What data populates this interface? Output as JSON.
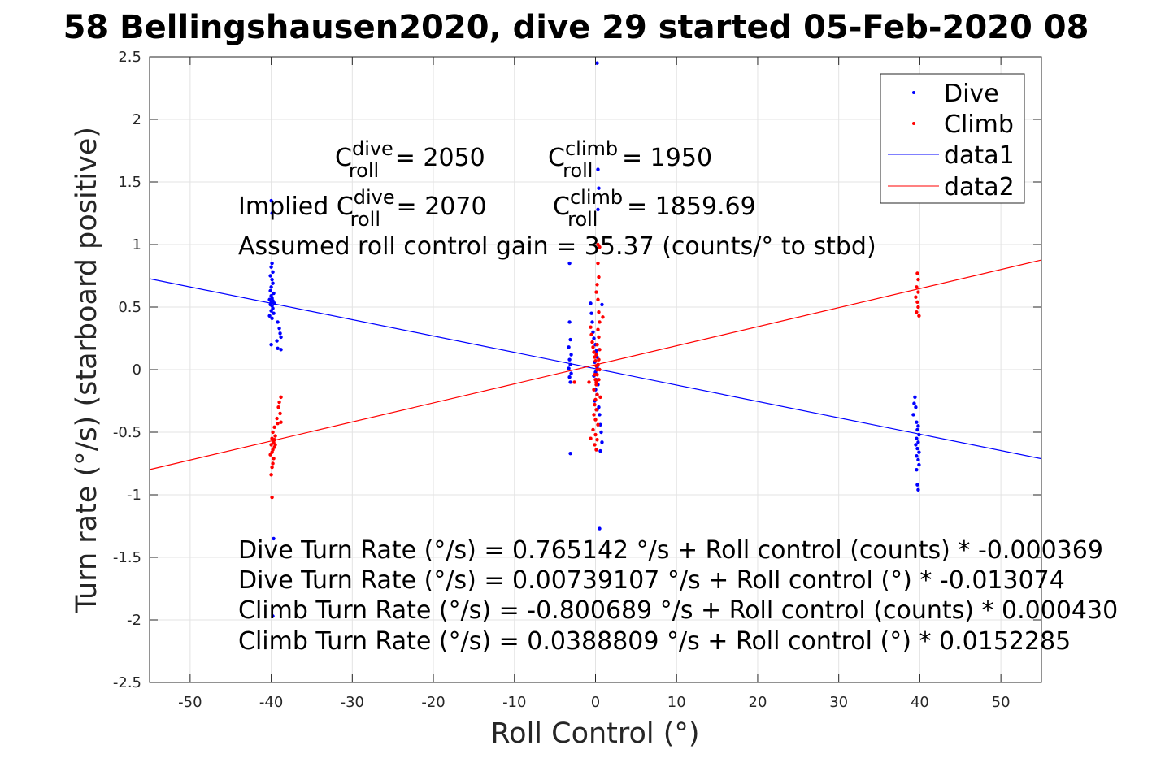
{
  "chart_data": {
    "type": "scatter",
    "title": "58 Bellingshausen2020, dive 29 started 05-Feb-2020 08",
    "xlabel": "Roll Control (°)",
    "ylabel": "Turn rate (°/s) (starboard positive)",
    "xlim": [
      -55,
      55
    ],
    "ylim": [
      -2.5,
      2.5
    ],
    "xticks": [
      -50,
      -40,
      -30,
      -20,
      -10,
      0,
      10,
      20,
      30,
      40,
      50
    ],
    "yticks": [
      -2.5,
      -2,
      -1.5,
      -1,
      -0.5,
      0,
      0.5,
      1,
      1.5,
      2,
      2.5
    ],
    "grid": true,
    "legend_position": "top-right",
    "colors": {
      "dive": "#0000ff",
      "climb": "#ff0000"
    },
    "series": [
      {
        "name": "Dive",
        "kind": "points",
        "color": "#0000ff",
        "points": [
          [
            -39.9,
            0.85
          ],
          [
            -40.0,
            0.82
          ],
          [
            -39.8,
            0.78
          ],
          [
            -40.1,
            0.75
          ],
          [
            -39.9,
            0.72
          ],
          [
            -39.8,
            0.69
          ],
          [
            -40.0,
            0.66
          ],
          [
            -40.1,
            0.63
          ],
          [
            -39.7,
            0.61
          ],
          [
            -40.0,
            0.59
          ],
          [
            -39.9,
            0.57
          ],
          [
            -40.2,
            0.56
          ],
          [
            -39.8,
            0.55
          ],
          [
            -40.0,
            0.54
          ],
          [
            -39.6,
            0.53
          ],
          [
            -40.1,
            0.52
          ],
          [
            -39.9,
            0.51
          ],
          [
            -39.8,
            0.49
          ],
          [
            -40.0,
            0.47
          ],
          [
            -39.7,
            0.45
          ],
          [
            -40.2,
            0.43
          ],
          [
            -39.9,
            0.41
          ],
          [
            -39.2,
            0.38
          ],
          [
            -39.0,
            0.33
          ],
          [
            -38.9,
            0.29
          ],
          [
            -38.8,
            0.26
          ],
          [
            -39.3,
            0.23
          ],
          [
            -40.0,
            0.2
          ],
          [
            -39.2,
            0.17
          ],
          [
            -38.8,
            0.16
          ],
          [
            -40.0,
            1.35
          ],
          [
            -39.9,
            1.25
          ],
          [
            -39.7,
            -1.35
          ],
          [
            -39.8,
            -1.97
          ],
          [
            -3.2,
            0.38
          ],
          [
            -3.1,
            0.24
          ],
          [
            -3.3,
            0.18
          ],
          [
            -3.0,
            0.12
          ],
          [
            -3.2,
            0.08
          ],
          [
            -3.1,
            0.04
          ],
          [
            -3.3,
            0.01
          ],
          [
            -3.0,
            -0.03
          ],
          [
            -3.2,
            -0.06
          ],
          [
            -3.1,
            -0.1
          ],
          [
            -3.2,
            0.85
          ],
          [
            -3.1,
            -0.67
          ],
          [
            -0.6,
            0.53
          ],
          [
            -0.5,
            0.45
          ],
          [
            -0.4,
            0.38
          ],
          [
            -0.3,
            0.3
          ],
          [
            -0.2,
            0.25
          ],
          [
            0.0,
            0.2
          ],
          [
            0.1,
            0.15
          ],
          [
            0.2,
            0.1
          ],
          [
            -0.1,
            0.06
          ],
          [
            0.2,
            0.02
          ],
          [
            0.0,
            -0.02
          ],
          [
            -0.2,
            -0.05
          ],
          [
            0.1,
            -0.08
          ],
          [
            0.3,
            -0.12
          ],
          [
            0.0,
            -0.16
          ],
          [
            0.2,
            -0.2
          ],
          [
            -0.1,
            -0.25
          ],
          [
            0.4,
            -0.3
          ],
          [
            0.5,
            -0.36
          ],
          [
            0.6,
            -0.44
          ],
          [
            0.7,
            -0.5
          ],
          [
            0.8,
            -0.58
          ],
          [
            0.6,
            -0.65
          ],
          [
            0.2,
            2.45
          ],
          [
            0.3,
            1.6
          ],
          [
            0.4,
            1.45
          ],
          [
            0.3,
            1.28
          ],
          [
            0.5,
            -1.27
          ],
          [
            0.2,
            -0.32
          ],
          [
            0.8,
            0.52
          ],
          [
            39.4,
            -0.22
          ],
          [
            39.3,
            -0.27
          ],
          [
            39.5,
            -0.3
          ],
          [
            39.2,
            -0.36
          ],
          [
            39.6,
            -0.42
          ],
          [
            39.8,
            -0.45
          ],
          [
            39.7,
            -0.48
          ],
          [
            39.9,
            -0.52
          ],
          [
            39.6,
            -0.55
          ],
          [
            39.8,
            -0.58
          ],
          [
            39.5,
            -0.6
          ],
          [
            39.7,
            -0.63
          ],
          [
            39.9,
            -0.66
          ],
          [
            39.6,
            -0.69
          ],
          [
            39.8,
            -0.72
          ],
          [
            39.9,
            -0.76
          ],
          [
            39.6,
            -0.8
          ],
          [
            39.7,
            -0.92
          ],
          [
            39.8,
            -0.96
          ]
        ]
      },
      {
        "name": "Climb",
        "kind": "points",
        "color": "#ff0000",
        "points": [
          [
            -38.8,
            -0.22
          ],
          [
            -39.0,
            -0.26
          ],
          [
            -39.1,
            -0.3
          ],
          [
            -38.9,
            -0.35
          ],
          [
            -39.3,
            -0.39
          ],
          [
            -38.8,
            -0.42
          ],
          [
            -39.6,
            -0.46
          ],
          [
            -39.8,
            -0.5
          ],
          [
            -39.5,
            -0.53
          ],
          [
            -39.9,
            -0.55
          ],
          [
            -39.7,
            -0.58
          ],
          [
            -40.0,
            -0.6
          ],
          [
            -39.6,
            -0.62
          ],
          [
            -39.8,
            -0.64
          ],
          [
            -39.9,
            -0.66
          ],
          [
            -40.1,
            -0.68
          ],
          [
            -39.7,
            -0.71
          ],
          [
            -39.8,
            -0.75
          ],
          [
            -39.9,
            -0.78
          ],
          [
            -40.0,
            -0.84
          ],
          [
            -39.6,
            -0.56
          ],
          [
            -39.2,
            -0.43
          ],
          [
            -39.5,
            -0.6
          ],
          [
            -39.9,
            -1.02
          ],
          [
            -0.6,
            0.34
          ],
          [
            -0.5,
            0.28
          ],
          [
            -0.4,
            0.22
          ],
          [
            -0.3,
            0.18
          ],
          [
            -0.2,
            0.14
          ],
          [
            -0.1,
            0.1
          ],
          [
            0.0,
            0.07
          ],
          [
            0.1,
            0.03
          ],
          [
            0.2,
            0.0
          ],
          [
            -0.1,
            -0.04
          ],
          [
            0.0,
            -0.08
          ],
          [
            0.1,
            -0.12
          ],
          [
            -0.2,
            -0.16
          ],
          [
            0.2,
            -0.2
          ],
          [
            0.0,
            -0.24
          ],
          [
            -0.1,
            -0.28
          ],
          [
            0.1,
            -0.32
          ],
          [
            -0.2,
            -0.36
          ],
          [
            0.0,
            -0.4
          ],
          [
            0.3,
            -0.44
          ],
          [
            -0.3,
            -0.48
          ],
          [
            0.0,
            -0.52
          ],
          [
            0.2,
            -0.56
          ],
          [
            -0.1,
            -0.6
          ],
          [
            0.1,
            -0.64
          ],
          [
            0.2,
            0.68
          ],
          [
            0.1,
            0.62
          ],
          [
            0.3,
            0.56
          ],
          [
            0.4,
            0.46
          ],
          [
            0.5,
            0.38
          ],
          [
            0.3,
            0.32
          ],
          [
            0.4,
            0.26
          ],
          [
            0.2,
            0.2
          ],
          [
            0.5,
            0.16
          ],
          [
            0.1,
            0.12
          ],
          [
            0.4,
            0.08
          ],
          [
            0.3,
            0.04
          ],
          [
            0.5,
            0.0
          ],
          [
            0.2,
            -0.04
          ],
          [
            0.4,
            -0.08
          ],
          [
            0.1,
            -0.1
          ],
          [
            0.3,
            0.85
          ],
          [
            0.4,
            0.74
          ],
          [
            0.9,
            0.42
          ],
          [
            0.6,
            -0.22
          ],
          [
            0.3,
            1.0
          ],
          [
            0.5,
            0.98
          ],
          [
            -2.6,
            -0.1
          ],
          [
            -0.8,
            -0.1
          ],
          [
            -0.6,
            -0.55
          ],
          [
            39.7,
            0.77
          ],
          [
            39.8,
            0.72
          ],
          [
            39.6,
            0.66
          ],
          [
            39.8,
            0.62
          ],
          [
            39.5,
            0.58
          ],
          [
            39.7,
            0.54
          ],
          [
            39.8,
            0.5
          ],
          [
            39.6,
            0.46
          ],
          [
            39.9,
            0.43
          ]
        ]
      },
      {
        "name": "data1",
        "kind": "line",
        "color": "#0000ff",
        "x": [
          -55,
          55
        ],
        "y": [
          0.7265,
          -0.7117
        ]
      },
      {
        "name": "data2",
        "kind": "line",
        "color": "#ff0000",
        "x": [
          -55,
          55
        ],
        "y": [
          -0.7987,
          0.8764
        ]
      }
    ],
    "annotations": {
      "c_roll_dive": {
        "C": "C",
        "sup": "dive",
        "sub": "roll",
        "value": " = 2050"
      },
      "c_roll_climb": {
        "C": "C",
        "sup": "climb",
        "sub": "roll",
        "value": " = 1950"
      },
      "implied_dive": {
        "prefix": "Implied C",
        "sup": "dive",
        "sub": "roll",
        "value": " = 2070"
      },
      "implied_climb": {
        "C": "C",
        "sup": "climb",
        "sub": "roll",
        "value": " = 1859.69"
      },
      "gain": "Assumed roll control gain = 35.37 (counts/° to stbd)",
      "fits": [
        "Dive Turn Rate (°/s) = 0.765142 °/s + Roll control (counts) * -0.000369",
        "Dive Turn Rate (°/s) = 0.00739107 °/s + Roll control (°) * -0.013074",
        "Climb Turn Rate (°/s) = -0.800689 °/s + Roll control (counts) * 0.000430",
        "Climb Turn Rate (°/s) = 0.0388809 °/s + Roll control (°) * 0.0152285"
      ]
    }
  }
}
